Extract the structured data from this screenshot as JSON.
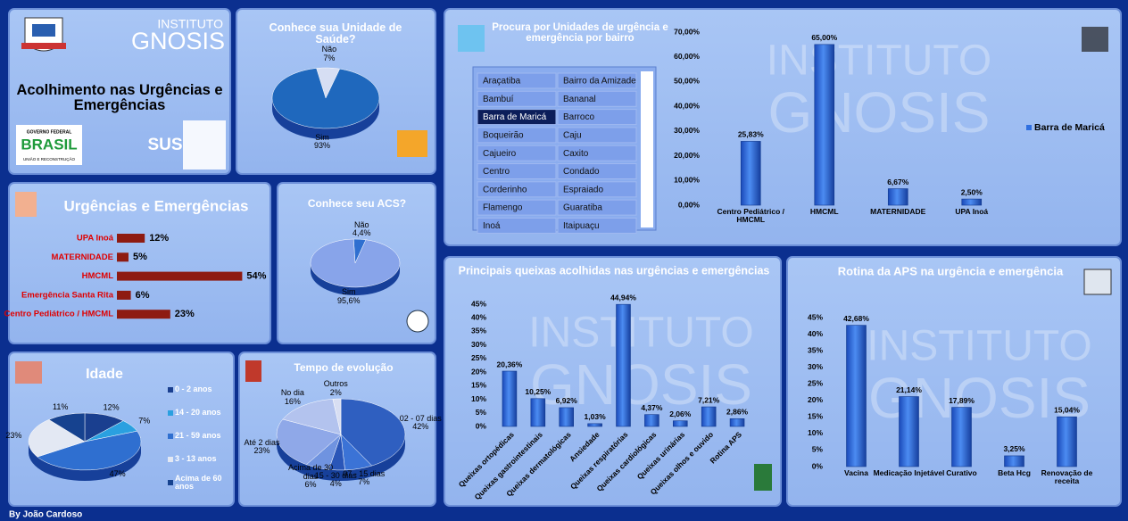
{
  "header": {
    "brand": [
      "INSTITUTO",
      "GNOSIS"
    ],
    "title": "Acolhimento nas Urgências e Emergências",
    "logo_gov": [
      "GOVERNO FEDERAL",
      "BRASIL",
      "UNIÃO E RECONSTRUÇÃO"
    ],
    "logo_sus": "SUS"
  },
  "slicer": {
    "items": [
      "Araçatiba",
      "Bairro da Amizade",
      "Bambuí",
      "Bananal",
      "Barra de Maricá",
      "Barroco",
      "Boqueirão",
      "Caju",
      "Cajueiro",
      "Caxito",
      "Centro",
      "Condado",
      "Corderinho",
      "Espraiado",
      "Flamengo",
      "Guaratiba",
      "Inoá",
      "Itaipuaçu"
    ],
    "selected": 4
  },
  "chart_data": [
    {
      "type": "hbar",
      "title": "Urgências e Emergências",
      "categories": [
        "UPA Inoá",
        "MATERNIDADE",
        "HMCML",
        "Emergência Santa Rita",
        "Centro Pediátrico / HMCML"
      ],
      "values": [
        12,
        5,
        54,
        6,
        23
      ],
      "value_labels": [
        "12%",
        "5%",
        "54%",
        "6%",
        "23%"
      ],
      "color": "#8e1b12"
    },
    {
      "type": "pie",
      "title": "Conhece sua Unidade de Saúde?",
      "categories": [
        "Não",
        "Sim"
      ],
      "values": [
        7,
        93
      ],
      "value_labels": [
        "7%",
        "93%"
      ],
      "colors": [
        "#d6def3",
        "#1f68bd"
      ]
    },
    {
      "type": "pie",
      "title": "Conhece seu ACS?",
      "categories": [
        "Não",
        "Sim"
      ],
      "values": [
        4.4,
        95.6
      ],
      "value_labels": [
        "4,4%",
        "95,6%"
      ],
      "colors": [
        "#2f6fd0",
        "#88a4ea"
      ]
    },
    {
      "type": "pie",
      "title": "Idade",
      "categories": [
        "0 - 2 anos",
        "14 - 20 anos",
        "21 - 59 anos",
        "3 - 13 anos",
        "Acima de 60 anos"
      ],
      "values": [
        12,
        7,
        47,
        23,
        11
      ],
      "value_labels": [
        "12%",
        "7%",
        "47%",
        "23%",
        "11%"
      ],
      "colors": [
        "#1a3f8f",
        "#2aa0e0",
        "#2f6fd0",
        "#e3e8f3",
        "#16428f"
      ],
      "legend": "right"
    },
    {
      "type": "pie",
      "title": "Tempo de evolução",
      "categories": [
        "02 - 07 dias",
        "07 - 15 dias",
        "15 - 30 dias",
        "Acima de 30 dias",
        "Até 2 dias",
        "No dia",
        "Outros"
      ],
      "values": [
        42,
        7,
        4,
        6,
        23,
        16,
        2
      ],
      "value_labels": [
        "42%",
        "7%",
        "4%",
        "6%",
        "23%",
        "16%",
        "2%"
      ],
      "colors": [
        "#2f5fc0",
        "#3b73d6",
        "#2a56b8",
        "#6f93e0",
        "#8fa8e8",
        "#b3c3ee",
        "#d8def2"
      ]
    },
    {
      "type": "bar",
      "title": "Procura por Unidades de urgência e emergência por bairro",
      "categories": [
        "Centro Pediátrico / HMCML",
        "HMCML",
        "MATERNIDADE",
        "UPA Inoá"
      ],
      "series": [
        {
          "name": "Barra de Maricá",
          "color": "#2f6fe0",
          "values": [
            25.83,
            65,
            6.67,
            2.5
          ],
          "value_labels": [
            "25,83%",
            "65,00%",
            "6,67%",
            "2,50%"
          ]
        }
      ],
      "ylim": [
        0,
        70
      ],
      "yticks": [
        {
          "value": 0,
          "label": "0,00%"
        },
        {
          "value": 10,
          "label": "10,00%"
        },
        {
          "value": 20,
          "label": "20,00%"
        },
        {
          "value": 30,
          "label": "30,00%"
        },
        {
          "value": 40,
          "label": "40,00%"
        },
        {
          "value": 50,
          "label": "50,00%"
        },
        {
          "value": 60,
          "label": "60,00%"
        },
        {
          "value": 70,
          "label": "70,00%"
        }
      ],
      "legend": "right"
    },
    {
      "type": "bar",
      "title": "Principais queixas acolhidas nas urgências e emergências",
      "categories": [
        "Queixas ortopédicas",
        "Queixas gastrointestinais",
        "Queixas dermatológicas",
        "Ansiedade",
        "Queixas respiratórias",
        "Queixas cardiológicas",
        "Queixas urinárias",
        "Queixas olhos e ouvido",
        "Rotina APS"
      ],
      "values": [
        20.36,
        10.25,
        6.92,
        1.03,
        44.94,
        4.37,
        2.06,
        7.21,
        2.86
      ],
      "value_labels": [
        "20,36%",
        "10,25%",
        "6,92%",
        "1,03%",
        "44,94%",
        "4,37%",
        "2,06%",
        "7,21%",
        "2,86%"
      ],
      "color": "#2f6fe0",
      "ylim": [
        0,
        45
      ],
      "yticks": [
        {
          "value": 0,
          "label": "0%"
        },
        {
          "value": 5,
          "label": "5%"
        },
        {
          "value": 10,
          "label": "10%"
        },
        {
          "value": 15,
          "label": "15%"
        },
        {
          "value": 20,
          "label": "20%"
        },
        {
          "value": 25,
          "label": "25%"
        },
        {
          "value": 30,
          "label": "30%"
        },
        {
          "value": 35,
          "label": "35%"
        },
        {
          "value": 40,
          "label": "40%"
        },
        {
          "value": 45,
          "label": "45%"
        }
      ]
    },
    {
      "type": "bar",
      "title": "Rotina da APS na urgência e emergência",
      "categories": [
        "Vacina",
        "Medicação Injetável",
        "Curativo",
        "Beta Hcg",
        "Renovação de receita"
      ],
      "values": [
        42.68,
        21.14,
        17.89,
        3.25,
        15.04
      ],
      "value_labels": [
        "42,68%",
        "21,14%",
        "17,89%",
        "3,25%",
        "15,04%"
      ],
      "color": "#2f6fe0",
      "ylim": [
        0,
        45
      ],
      "yticks": [
        {
          "value": 0,
          "label": "0%"
        },
        {
          "value": 5,
          "label": "5%"
        },
        {
          "value": 10,
          "label": "10%"
        },
        {
          "value": 15,
          "label": "15%"
        },
        {
          "value": 20,
          "label": "20%"
        },
        {
          "value": 25,
          "label": "25%"
        },
        {
          "value": 30,
          "label": "30%"
        },
        {
          "value": 35,
          "label": "35%"
        },
        {
          "value": 40,
          "label": "40%"
        },
        {
          "value": 45,
          "label": "45%"
        }
      ]
    }
  ],
  "footer": "By João Cardoso"
}
